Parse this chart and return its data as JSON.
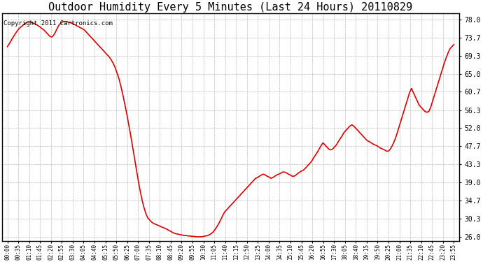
{
  "title": "Outdoor Humidity Every 5 Minutes (Last 24 Hours) 20110829",
  "copyright": "Copyright 2011 Cartronics.com",
  "yticks": [
    26.0,
    30.3,
    34.7,
    39.0,
    43.3,
    47.7,
    52.0,
    56.3,
    60.7,
    65.0,
    69.3,
    73.7,
    78.0
  ],
  "ylim": [
    25.0,
    79.5
  ],
  "line_color": "#dd0000",
  "bg_color": "#ffffff",
  "grid_color": "#bbbbbb",
  "title_fontsize": 11,
  "copyright_fontsize": 6.5,
  "xtick_labels": [
    "00:00",
    "00:35",
    "01:10",
    "01:45",
    "02:20",
    "02:55",
    "03:30",
    "04:05",
    "04:40",
    "05:15",
    "05:50",
    "06:25",
    "07:00",
    "07:35",
    "08:10",
    "08:45",
    "09:20",
    "09:55",
    "10:30",
    "11:05",
    "11:40",
    "12:15",
    "12:50",
    "13:25",
    "14:00",
    "14:35",
    "15:10",
    "15:45",
    "16:20",
    "16:55",
    "17:30",
    "18:05",
    "18:40",
    "19:15",
    "19:50",
    "20:25",
    "21:00",
    "21:35",
    "22:10",
    "22:45",
    "23:20",
    "23:55"
  ],
  "humidity_values": [
    71.5,
    72.2,
    73.0,
    73.8,
    74.5,
    75.2,
    75.8,
    76.2,
    76.6,
    77.0,
    77.3,
    77.5,
    77.4,
    77.2,
    77.0,
    76.8,
    76.5,
    76.2,
    75.8,
    75.5,
    75.0,
    74.5,
    74.0,
    73.8,
    74.2,
    75.0,
    76.0,
    76.8,
    77.2,
    77.5,
    77.5,
    77.5,
    77.3,
    77.2,
    77.0,
    76.8,
    76.5,
    76.3,
    76.0,
    75.8,
    75.5,
    75.0,
    74.5,
    74.0,
    73.5,
    73.0,
    72.5,
    72.0,
    71.5,
    71.0,
    70.5,
    70.0,
    69.5,
    69.0,
    68.3,
    67.5,
    66.5,
    65.2,
    63.8,
    62.0,
    60.0,
    57.8,
    55.5,
    53.0,
    50.5,
    47.8,
    45.0,
    42.2,
    39.5,
    37.0,
    34.8,
    33.0,
    31.5,
    30.5,
    30.0,
    29.5,
    29.2,
    29.0,
    28.8,
    28.6,
    28.4,
    28.2,
    28.0,
    27.8,
    27.5,
    27.3,
    27.0,
    26.8,
    26.7,
    26.6,
    26.5,
    26.4,
    26.3,
    26.3,
    26.2,
    26.2,
    26.1,
    26.1,
    26.0,
    26.0,
    26.0,
    26.0,
    26.1,
    26.2,
    26.3,
    26.5,
    26.8,
    27.2,
    27.8,
    28.5,
    29.3,
    30.2,
    31.2,
    32.0,
    32.5,
    33.0,
    33.5,
    34.0,
    34.5,
    35.0,
    35.5,
    36.0,
    36.5,
    37.0,
    37.5,
    38.0,
    38.5,
    39.0,
    39.5,
    40.0,
    40.2,
    40.5,
    40.8,
    41.0,
    40.8,
    40.5,
    40.3,
    40.0,
    40.2,
    40.5,
    40.8,
    41.0,
    41.2,
    41.5,
    41.5,
    41.3,
    41.0,
    40.8,
    40.5,
    40.5,
    40.8,
    41.2,
    41.5,
    41.8,
    42.0,
    42.5,
    43.0,
    43.5,
    44.0,
    44.8,
    45.5,
    46.2,
    47.0,
    47.8,
    48.5,
    48.0,
    47.5,
    47.0,
    46.8,
    47.0,
    47.5,
    48.0,
    48.8,
    49.5,
    50.2,
    51.0,
    51.5,
    52.0,
    52.5,
    52.8,
    52.5,
    52.0,
    51.5,
    51.0,
    50.5,
    50.0,
    49.5,
    49.0,
    48.8,
    48.5,
    48.2,
    48.0,
    47.8,
    47.5,
    47.2,
    47.0,
    46.8,
    46.5,
    46.5,
    47.0,
    47.8,
    48.8,
    50.0,
    51.5,
    53.0,
    54.5,
    56.0,
    57.5,
    59.0,
    60.5,
    61.5,
    60.5,
    59.5,
    58.5,
    57.5,
    57.0,
    56.5,
    56.0,
    55.8,
    56.0,
    57.0,
    58.5,
    60.0,
    61.5,
    63.0,
    64.5,
    66.0,
    67.5,
    68.8,
    70.0,
    71.0,
    71.5,
    72.0
  ]
}
